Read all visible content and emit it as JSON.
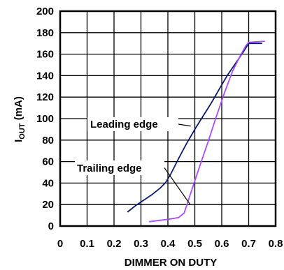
{
  "chart_data": {
    "type": "line",
    "title": "",
    "xlabel": "DIMMER ON DUTY",
    "ylabel_main": "I",
    "ylabel_sub": "OUT",
    "ylabel_unit": " (mA)",
    "xlim": [
      0,
      0.8
    ],
    "ylim": [
      0,
      200
    ],
    "x_ticks": [
      "0",
      "0.1",
      "0.2",
      "0.3",
      "0.4",
      "0.5",
      "0.6",
      "0.7",
      "0.8"
    ],
    "y_ticks": [
      "0",
      "20",
      "40",
      "60",
      "80",
      "100",
      "120",
      "140",
      "160",
      "180",
      "200"
    ],
    "grid": true,
    "legend": "none",
    "colors": {
      "leading": "#0a1a6e",
      "trailing": "#a64dff"
    },
    "series": [
      {
        "name": "Leading edge",
        "points": [
          [
            0.25,
            13
          ],
          [
            0.28,
            19
          ],
          [
            0.31,
            24
          ],
          [
            0.34,
            29
          ],
          [
            0.37,
            35
          ],
          [
            0.39,
            40
          ],
          [
            0.41,
            48
          ],
          [
            0.44,
            63
          ],
          [
            0.47,
            77
          ],
          [
            0.5,
            90
          ],
          [
            0.53,
            102
          ],
          [
            0.56,
            114
          ],
          [
            0.59,
            127
          ],
          [
            0.62,
            140
          ],
          [
            0.65,
            151
          ],
          [
            0.68,
            162
          ],
          [
            0.7,
            170
          ],
          [
            0.75,
            170
          ]
        ]
      },
      {
        "name": "Trailing edge",
        "points": [
          [
            0.33,
            4
          ],
          [
            0.36,
            5
          ],
          [
            0.39,
            6
          ],
          [
            0.42,
            7
          ],
          [
            0.44,
            8
          ],
          [
            0.46,
            12
          ],
          [
            0.47,
            19
          ],
          [
            0.48,
            27
          ],
          [
            0.5,
            42
          ],
          [
            0.52,
            57
          ],
          [
            0.55,
            79
          ],
          [
            0.58,
            102
          ],
          [
            0.61,
            124
          ],
          [
            0.64,
            144
          ],
          [
            0.67,
            159
          ],
          [
            0.69,
            168
          ],
          [
            0.7,
            171
          ],
          [
            0.76,
            172
          ]
        ]
      }
    ],
    "annotations": [
      {
        "text": "Leading edge",
        "pointer_from": [
          0.45,
          95
        ],
        "pointer_to": [
          0.485,
          93
        ]
      },
      {
        "text": "Trailing edge",
        "pointer_from": [
          0.45,
          50
        ],
        "pointer_to": [
          0.483,
          20
        ]
      }
    ]
  }
}
